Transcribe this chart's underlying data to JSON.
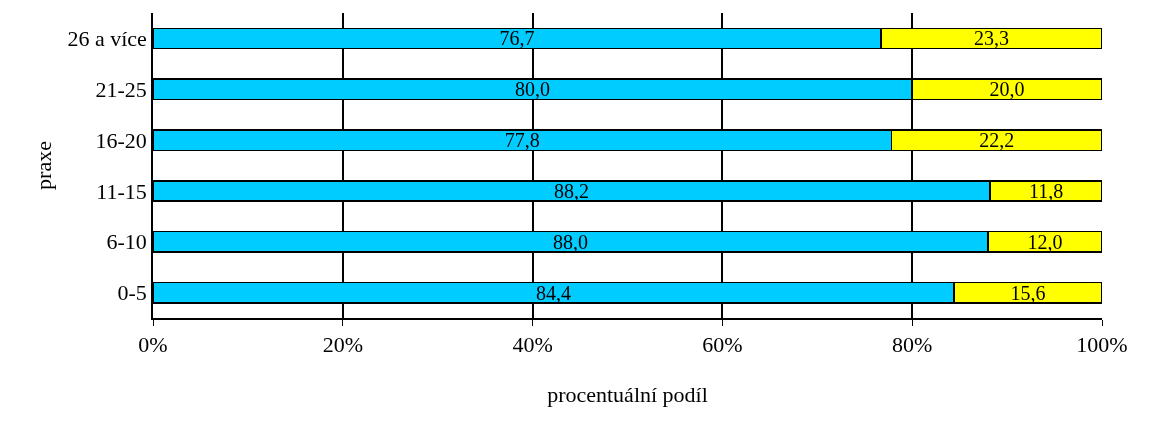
{
  "chart_data": {
    "type": "bar",
    "orientation": "horizontal",
    "stacked": true,
    "xlabel": "procentuální podíl",
    "ylabel": "praxe",
    "categories": [
      "26 a více",
      "21-25",
      "16-20",
      "11-15",
      "6-10",
      "0-5"
    ],
    "series": [
      {
        "color": "#00ccff",
        "values": [
          76.7,
          80.0,
          77.8,
          88.2,
          88.0,
          84.4
        ],
        "value_labels": [
          "76,7",
          "80,0",
          "77,8",
          "88,2",
          "88,0",
          "84,4"
        ]
      },
      {
        "color": "#ffff00",
        "values": [
          23.3,
          20.0,
          22.2,
          11.8,
          12.0,
          15.6
        ],
        "value_labels": [
          "23,3",
          "20,0",
          "22,2",
          "11,8",
          "12,0",
          "15,6"
        ]
      }
    ],
    "xlim": [
      0,
      100
    ],
    "xticks": [
      {
        "value": 0,
        "label": "0%"
      },
      {
        "value": 20,
        "label": "20%"
      },
      {
        "value": 40,
        "label": "40%"
      },
      {
        "value": 60,
        "label": "60%"
      },
      {
        "value": 80,
        "label": "80%"
      },
      {
        "value": 100,
        "label": "100%"
      }
    ],
    "grid": "x"
  }
}
